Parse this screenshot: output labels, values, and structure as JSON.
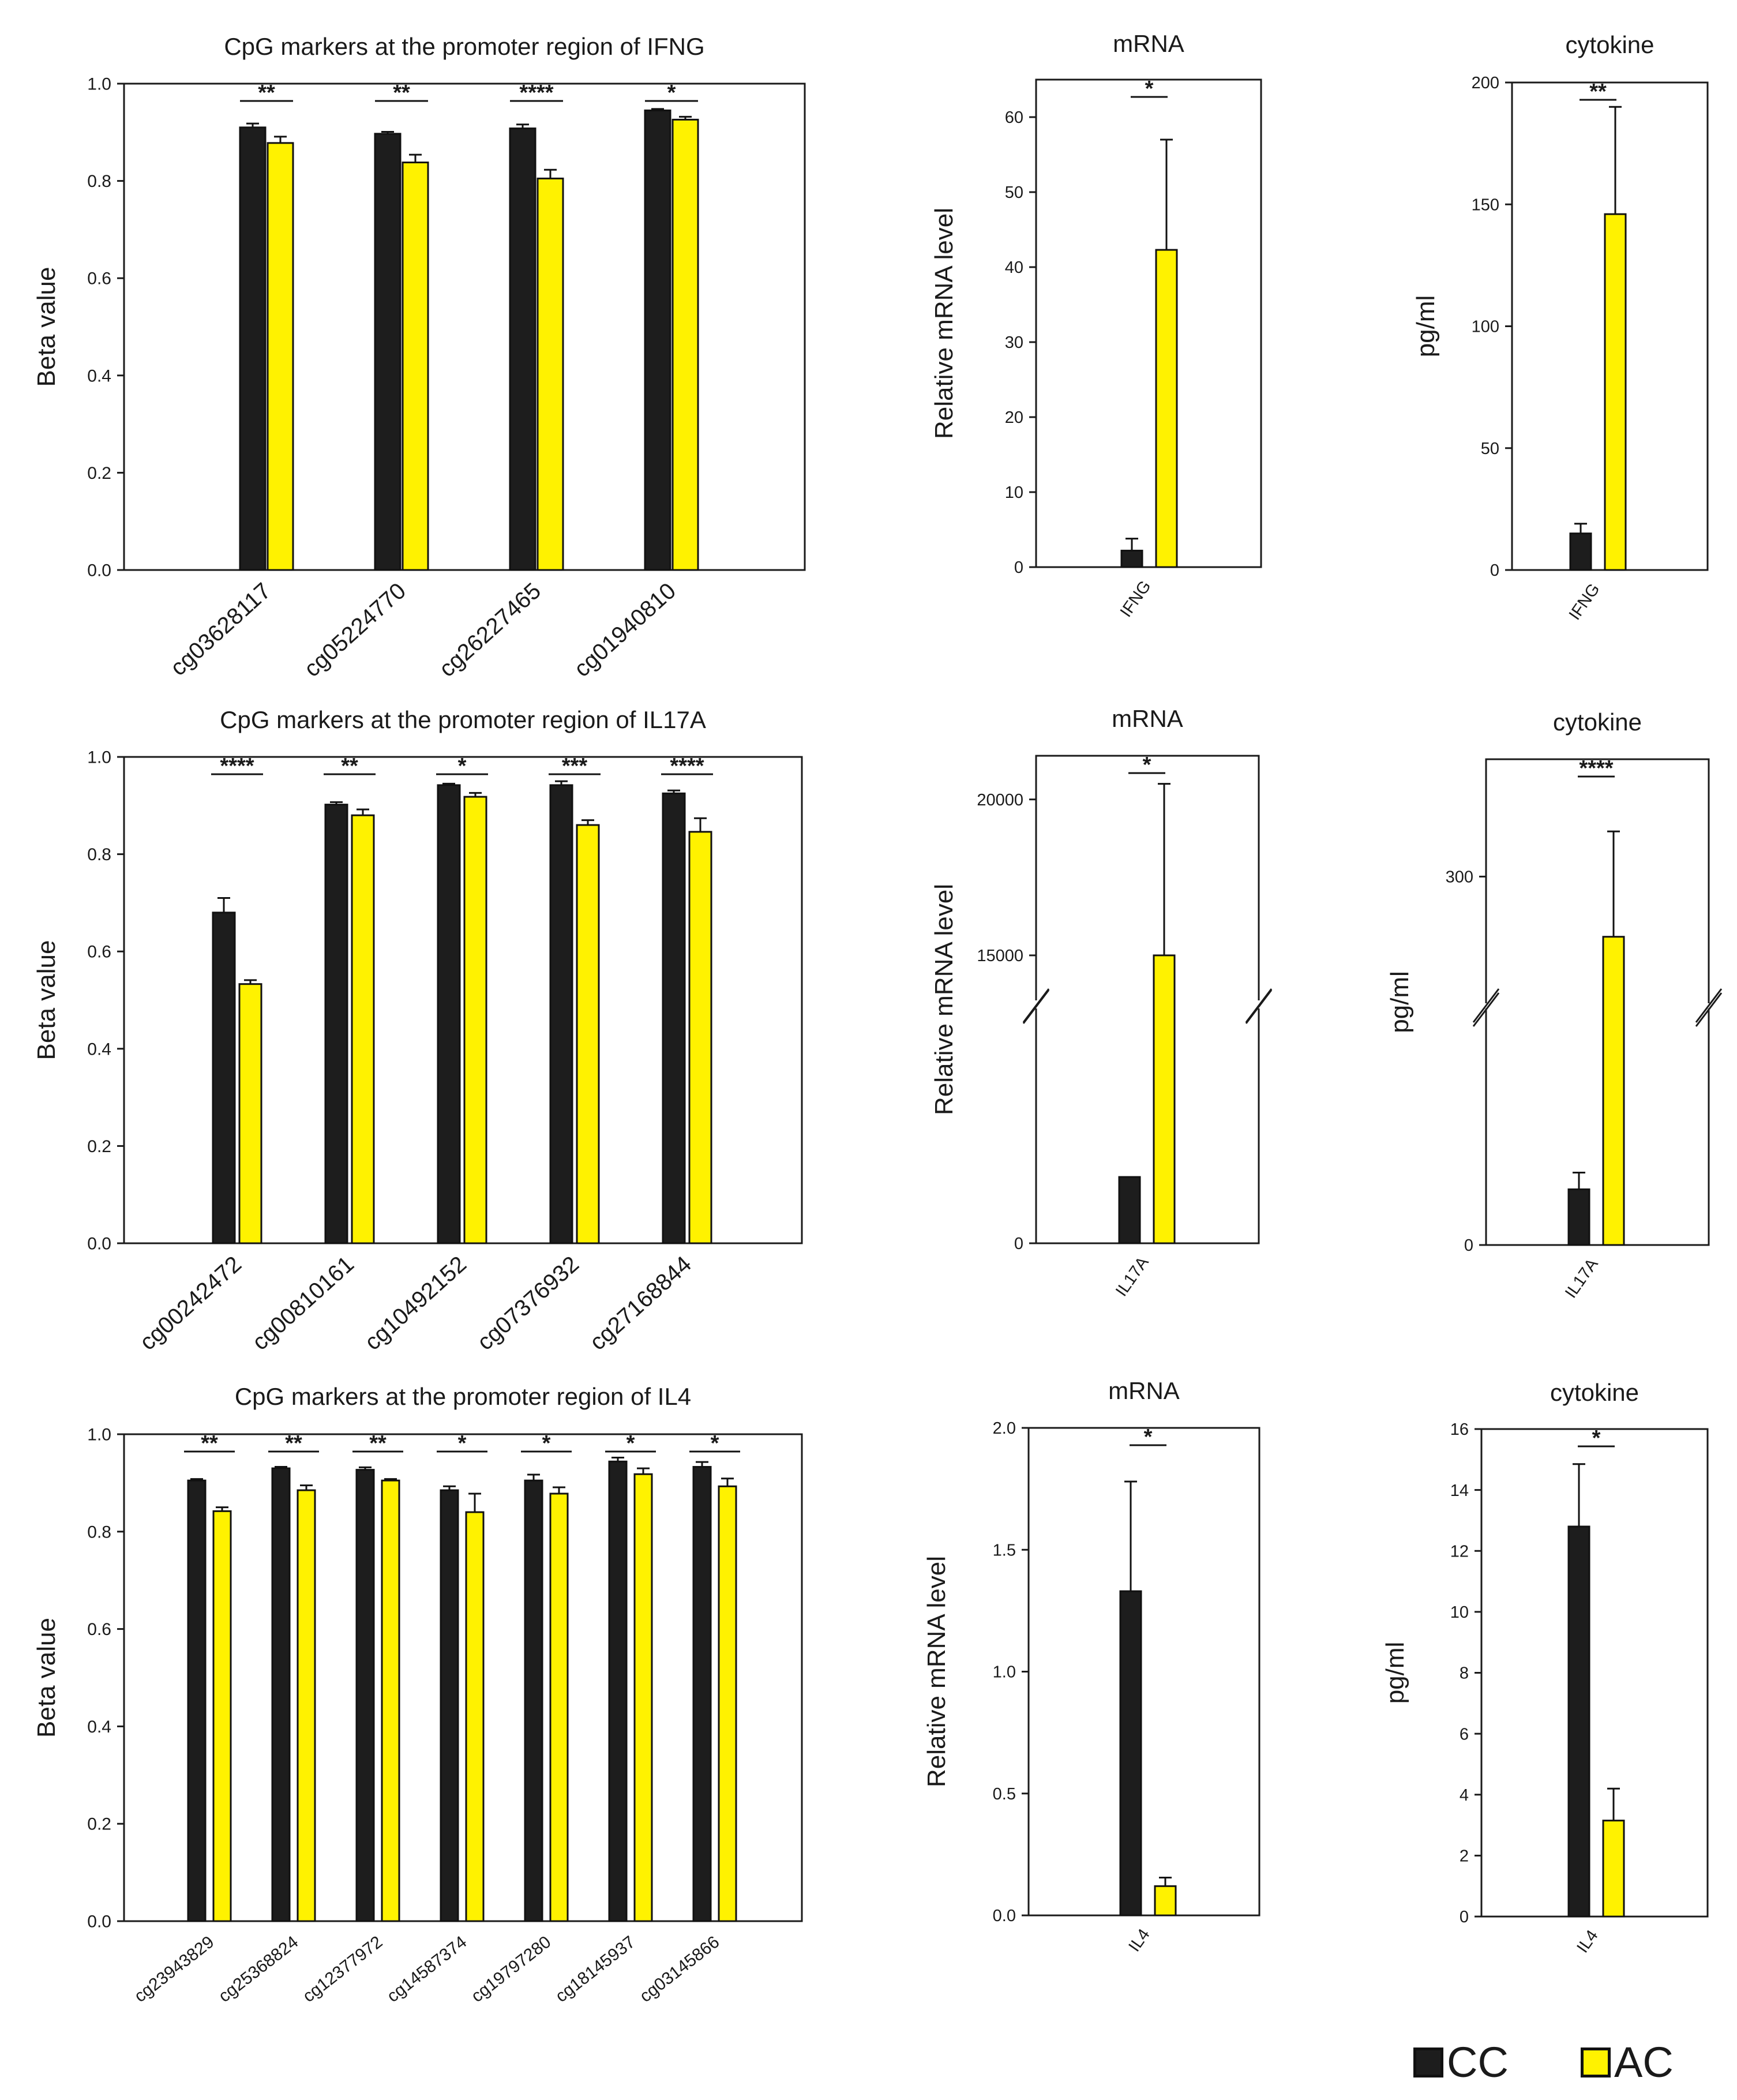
{
  "colors": {
    "cc": "#1d1d1d",
    "ac": "#fff200",
    "axis": "#1a1a1a"
  },
  "legend": [
    {
      "label": "CC",
      "color": "#1d1d1d"
    },
    {
      "label": "AC",
      "color": "#fff200"
    }
  ],
  "chart_data": [
    {
      "id": "ifng_cpg",
      "type": "bar",
      "title": "CpG markers at the promoter region of IFNG",
      "xlabel": "",
      "ylabel": "Beta value",
      "ylim": [
        0,
        1.0
      ],
      "yticks": [
        0.0,
        0.2,
        0.4,
        0.6,
        0.8,
        1.0
      ],
      "categories": [
        "cg03628117",
        "cg05224770",
        "cg26227465",
        "cg01940810"
      ],
      "series": [
        {
          "name": "CC",
          "values": [
            0.91,
            0.897,
            0.908,
            0.945
          ],
          "errors": [
            0.008,
            0.004,
            0.008,
            0.003
          ]
        },
        {
          "name": "AC",
          "values": [
            0.878,
            0.838,
            0.805,
            0.926
          ],
          "errors": [
            0.013,
            0.016,
            0.018,
            0.006
          ]
        }
      ],
      "significance": [
        "**",
        "**",
        "****",
        "*"
      ]
    },
    {
      "id": "ifng_mrna",
      "type": "bar",
      "title": "mRNA",
      "xlabel": "",
      "ylabel": "Relative mRNA level",
      "ylim": [
        0,
        65
      ],
      "yticks": [
        0,
        10,
        20,
        30,
        40,
        50,
        60
      ],
      "categories": [
        "IFNG"
      ],
      "series": [
        {
          "name": "CC",
          "values": [
            2.2
          ],
          "errors": [
            1.6
          ]
        },
        {
          "name": "AC",
          "values": [
            42.3
          ],
          "errors": [
            14.7
          ]
        }
      ],
      "significance": [
        "*"
      ]
    },
    {
      "id": "ifng_cytokine",
      "type": "bar",
      "title": "cytokine",
      "xlabel": "",
      "ylabel": "pg/ml",
      "ylim": [
        0,
        200
      ],
      "yticks": [
        0,
        50,
        100,
        150,
        200
      ],
      "categories": [
        "IFNG"
      ],
      "series": [
        {
          "name": "CC",
          "values": [
            15
          ],
          "errors": [
            4
          ]
        },
        {
          "name": "AC",
          "values": [
            146
          ],
          "errors": [
            44
          ]
        }
      ],
      "significance": [
        "**"
      ]
    },
    {
      "id": "il17a_cpg",
      "type": "bar",
      "title": "CpG markers at the promoter region of IL17A",
      "xlabel": "",
      "ylabel": "Beta value",
      "ylim": [
        0,
        1.0
      ],
      "yticks": [
        0.0,
        0.2,
        0.4,
        0.6,
        0.8,
        1.0
      ],
      "categories": [
        "cg00242472",
        "cg00810161",
        "cg10492152",
        "cg07376932",
        "cg27168844"
      ],
      "series": [
        {
          "name": "CC",
          "values": [
            0.68,
            0.902,
            0.942,
            0.942,
            0.925
          ],
          "errors": [
            0.03,
            0.005,
            0.003,
            0.008,
            0.006
          ]
        },
        {
          "name": "AC",
          "values": [
            0.533,
            0.88,
            0.918,
            0.86,
            0.846
          ],
          "errors": [
            0.008,
            0.012,
            0.008,
            0.01,
            0.028
          ]
        }
      ],
      "significance": [
        "****",
        "**",
        "*",
        "***",
        "****"
      ]
    },
    {
      "id": "il17a_mrna",
      "type": "bar",
      "title": "mRNA",
      "xlabel": "",
      "ylabel": "Relative mRNA level",
      "broken_axis": true,
      "yticks": [
        0,
        15000,
        20000
      ],
      "categories": [
        "IL17A"
      ],
      "series": [
        {
          "name": "CC",
          "values": [
            600
          ],
          "errors": [
            0
          ]
        },
        {
          "name": "AC",
          "values": [
            15000
          ],
          "errors": [
            5500
          ]
        }
      ],
      "significance": [
        "*"
      ]
    },
    {
      "id": "il17a_cytokine",
      "type": "bar",
      "title": "cytokine",
      "xlabel": "",
      "ylabel": "pg/ml",
      "broken_axis": true,
      "yticks": [
        0,
        300
      ],
      "categories": [
        "IL17A"
      ],
      "series": [
        {
          "name": "CC",
          "values": [
            10
          ],
          "errors": [
            3
          ]
        },
        {
          "name": "AC",
          "values": [
            260
          ],
          "errors": [
            70
          ]
        }
      ],
      "significance": [
        "****"
      ]
    },
    {
      "id": "il4_cpg",
      "type": "bar",
      "title": "CpG markers at the promoter region of IL4",
      "xlabel": "",
      "ylabel": "Beta value",
      "ylim": [
        0,
        1.0
      ],
      "yticks": [
        0.0,
        0.2,
        0.4,
        0.6,
        0.8,
        1.0
      ],
      "categories": [
        "cg23943829",
        "cg25368824",
        "cg12377972",
        "cg14587374",
        "cg19797280",
        "cg18145937",
        "cg03145866"
      ],
      "series": [
        {
          "name": "CC",
          "values": [
            0.905,
            0.93,
            0.927,
            0.885,
            0.905,
            0.944,
            0.933
          ],
          "errors": [
            0.003,
            0.003,
            0.005,
            0.008,
            0.012,
            0.008,
            0.01
          ]
        },
        {
          "name": "AC",
          "values": [
            0.842,
            0.885,
            0.905,
            0.84,
            0.878,
            0.918,
            0.893
          ],
          "errors": [
            0.008,
            0.01,
            0.003,
            0.038,
            0.013,
            0.012,
            0.016
          ]
        }
      ],
      "significance": [
        "**",
        "**",
        "**",
        "*",
        "*",
        "*",
        "*"
      ]
    },
    {
      "id": "il4_mrna",
      "type": "bar",
      "title": "mRNA",
      "xlabel": "",
      "ylabel": "Relative mRNA level",
      "ylim": [
        0,
        2.0
      ],
      "yticks": [
        0.0,
        0.5,
        1.0,
        1.5,
        2.0
      ],
      "categories": [
        "IL4"
      ],
      "series": [
        {
          "name": "CC",
          "values": [
            1.33
          ],
          "errors": [
            0.45
          ]
        },
        {
          "name": "AC",
          "values": [
            0.12
          ],
          "errors": [
            0.035
          ]
        }
      ],
      "significance": [
        "*"
      ]
    },
    {
      "id": "il4_cytokine",
      "type": "bar",
      "title": "cytokine",
      "xlabel": "",
      "ylabel": "pg/ml",
      "ylim": [
        0,
        16
      ],
      "yticks": [
        0,
        2,
        4,
        6,
        8,
        10,
        12,
        14,
        16
      ],
      "categories": [
        "IL4"
      ],
      "series": [
        {
          "name": "CC",
          "values": [
            12.8
          ],
          "errors": [
            2.05
          ]
        },
        {
          "name": "AC",
          "values": [
            3.15
          ],
          "errors": [
            1.05
          ]
        }
      ],
      "significance": [
        "*"
      ]
    }
  ]
}
